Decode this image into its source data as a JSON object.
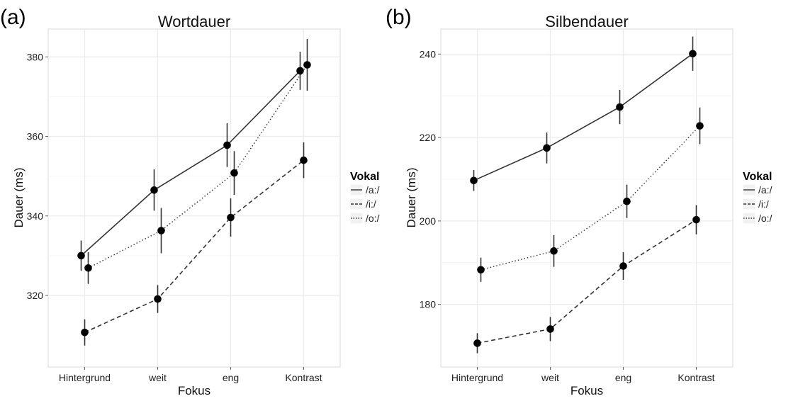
{
  "chart_data": [
    {
      "type": "line",
      "panel_label": "(a)",
      "title": "Wortdauer",
      "xlabel": "Fokus",
      "ylabel": "Dauer (ms)",
      "categories": [
        "Hintergrund",
        "weit",
        "eng",
        "Kontrast"
      ],
      "ylim": [
        302,
        387
      ],
      "yticks": [
        320,
        340,
        360,
        380
      ],
      "grid": true,
      "legend": {
        "title": "Vokal",
        "position": "right",
        "entries": [
          "/a:/",
          "/i:/",
          "/o:/"
        ]
      },
      "series": [
        {
          "name": "/a:/",
          "line": "solid",
          "values": [
            330.0,
            346.5,
            357.8,
            376.5
          ],
          "errors": [
            3.8,
            5.2,
            5.5,
            4.8
          ]
        },
        {
          "name": "/i:/",
          "line": "dashed",
          "values": [
            310.7,
            319.1,
            339.6,
            354.0
          ],
          "errors": [
            3.3,
            3.5,
            4.8,
            4.5
          ]
        },
        {
          "name": "/o:/",
          "line": "dotted",
          "values": [
            326.9,
            336.3,
            350.8,
            378.0
          ],
          "errors": [
            4.0,
            5.7,
            5.5,
            6.5
          ]
        }
      ]
    },
    {
      "type": "line",
      "panel_label": "(b)",
      "title": "Silbendauer",
      "xlabel": "Fokus",
      "ylabel": "Dauer (ms)",
      "categories": [
        "Hintergrund",
        "weit",
        "eng",
        "Kontrast"
      ],
      "ylim": [
        165,
        246
      ],
      "yticks": [
        180,
        200,
        220,
        240
      ],
      "grid": true,
      "legend": {
        "title": "Vokal",
        "position": "right",
        "entries": [
          "/a:/",
          "/i:/",
          "/o:/"
        ]
      },
      "series": [
        {
          "name": "/a:/",
          "line": "solid",
          "values": [
            209.7,
            217.5,
            227.3,
            240.1
          ],
          "errors": [
            2.5,
            3.7,
            4.1,
            4.1
          ]
        },
        {
          "name": "/i:/",
          "line": "dashed",
          "values": [
            170.7,
            174.1,
            189.2,
            200.3
          ],
          "errors": [
            2.4,
            2.9,
            3.3,
            3.5
          ]
        },
        {
          "name": "/o:/",
          "line": "dotted",
          "values": [
            188.3,
            192.8,
            204.7,
            222.8
          ],
          "errors": [
            2.9,
            3.8,
            4.0,
            4.4
          ]
        }
      ]
    }
  ],
  "colors": {
    "line": "#333333",
    "point": "#000000",
    "grid": "#ebebeb",
    "frame": "#d9d9d9"
  }
}
